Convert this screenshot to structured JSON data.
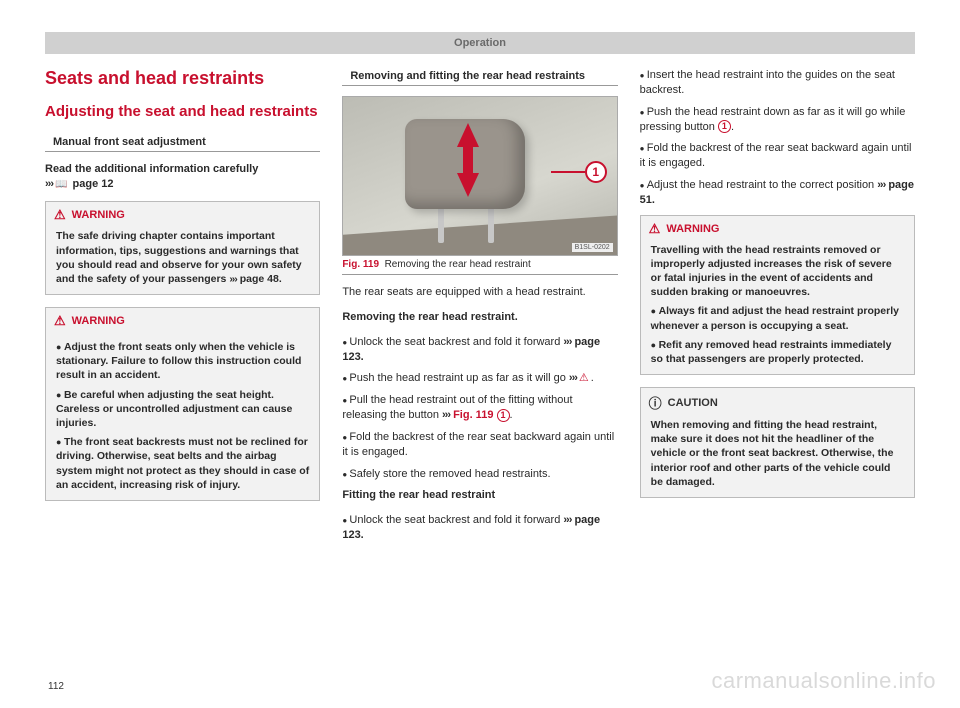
{
  "header": "Operation",
  "page_number": "112",
  "watermark": "carmanualsonline.info",
  "col1": {
    "h1": "Seats and head restraints",
    "h2": "Adjusting the seat and head restraints",
    "sub": "Manual front seat adjustment",
    "intro_a": "Read the additional information carefully",
    "intro_b": "page 12",
    "warn1": {
      "title": "WARNING",
      "body": "The safe driving chapter contains important information, tips, suggestions and warnings that you should read and observe for your own safety and the safety of your passengers ",
      "ref": "page 48."
    },
    "warn2": {
      "title": "WARNING",
      "b1": "Adjust the front seats only when the vehicle is stationary. Failure to follow this instruction could result in an accident.",
      "b2": "Be careful when adjusting the seat height. Careless or uncontrolled adjustment can cause injuries.",
      "b3": "The front seat backrests must not be reclined for driving. Otherwise, seat belts and the airbag system might not protect as they should in case of an accident, increasing risk of injury."
    }
  },
  "col2": {
    "sub": "Removing and fitting the rear head restraints",
    "fig_code": "B1SL-0202",
    "fig_callout": "1",
    "fig_num": "Fig. 119",
    "fig_cap": "Removing the rear head restraint",
    "p1": "The rear seats are equipped with a head restraint.",
    "h_remove": "Removing the rear head restraint.",
    "r1a": "Unlock the seat backrest and fold it forward ",
    "r1b": "page 123.",
    "r2a": "Push the head restraint up as far as it will go ",
    "r2b": ".",
    "r3a": "Pull the head restraint out of the fitting without releasing the button ",
    "r3b": "Fig. 119",
    "r3c": "1",
    "r3d": ".",
    "r4": "Fold the backrest of the rear seat backward again until it is engaged.",
    "r5": "Safely store the removed head restraints.",
    "h_fit": "Fitting the rear head restraint",
    "f1a": "Unlock the seat backrest and fold it forward ",
    "f1b": "page 123."
  },
  "col3": {
    "i1": "Insert the head restraint into the guides on the seat backrest.",
    "i2a": "Push the head restraint down as far as it will go while pressing button ",
    "i2b": "1",
    "i2c": ".",
    "i3": "Fold the backrest of the rear seat backward again until it is engaged.",
    "i4a": "Adjust the head restraint to the correct position ",
    "i4b": "page 51.",
    "warn": {
      "title": "WARNING",
      "p": "Travelling with the head restraints removed or improperly adjusted increases the risk of severe or fatal injuries in the event of accidents and sudden braking or manoeuvres.",
      "b1": "Always fit and adjust the head restraint properly whenever a person is occupying a seat.",
      "b2": "Refit any removed head restraints immediately so that passengers are properly protected."
    },
    "caution": {
      "title": "CAUTION",
      "body": "When removing and fitting the head restraint, make sure it does not hit the headliner of the vehicle or the front seat backrest. Otherwise, the interior roof and other parts of the vehicle could be damaged."
    }
  }
}
